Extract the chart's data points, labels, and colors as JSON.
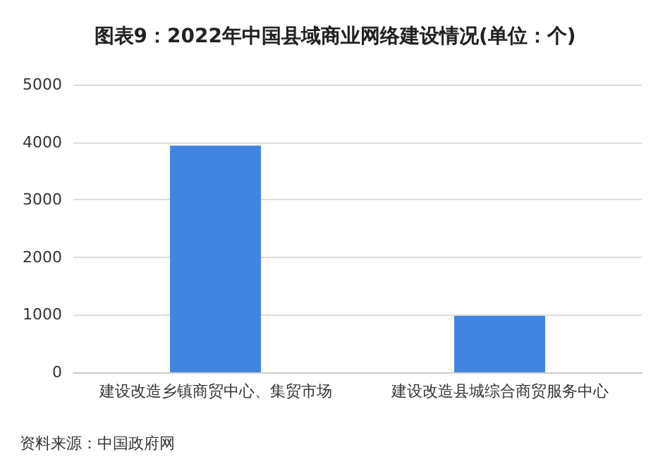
{
  "chart_data": {
    "type": "bar",
    "title": "图表9：2022年中国县域商业网络建设情况(单位：个)",
    "categories": [
      "建设改造乡镇商贸中心、集贸市场",
      "建设改造县城综合商贸服务中心"
    ],
    "values": [
      3940,
      980
    ],
    "color": "#4285e0",
    "ylim": [
      0,
      5000
    ],
    "yticks": [
      0,
      1000,
      2000,
      3000,
      4000,
      5000
    ],
    "grid": "y",
    "annotations": [
      "资料来源：中国政府网"
    ]
  }
}
